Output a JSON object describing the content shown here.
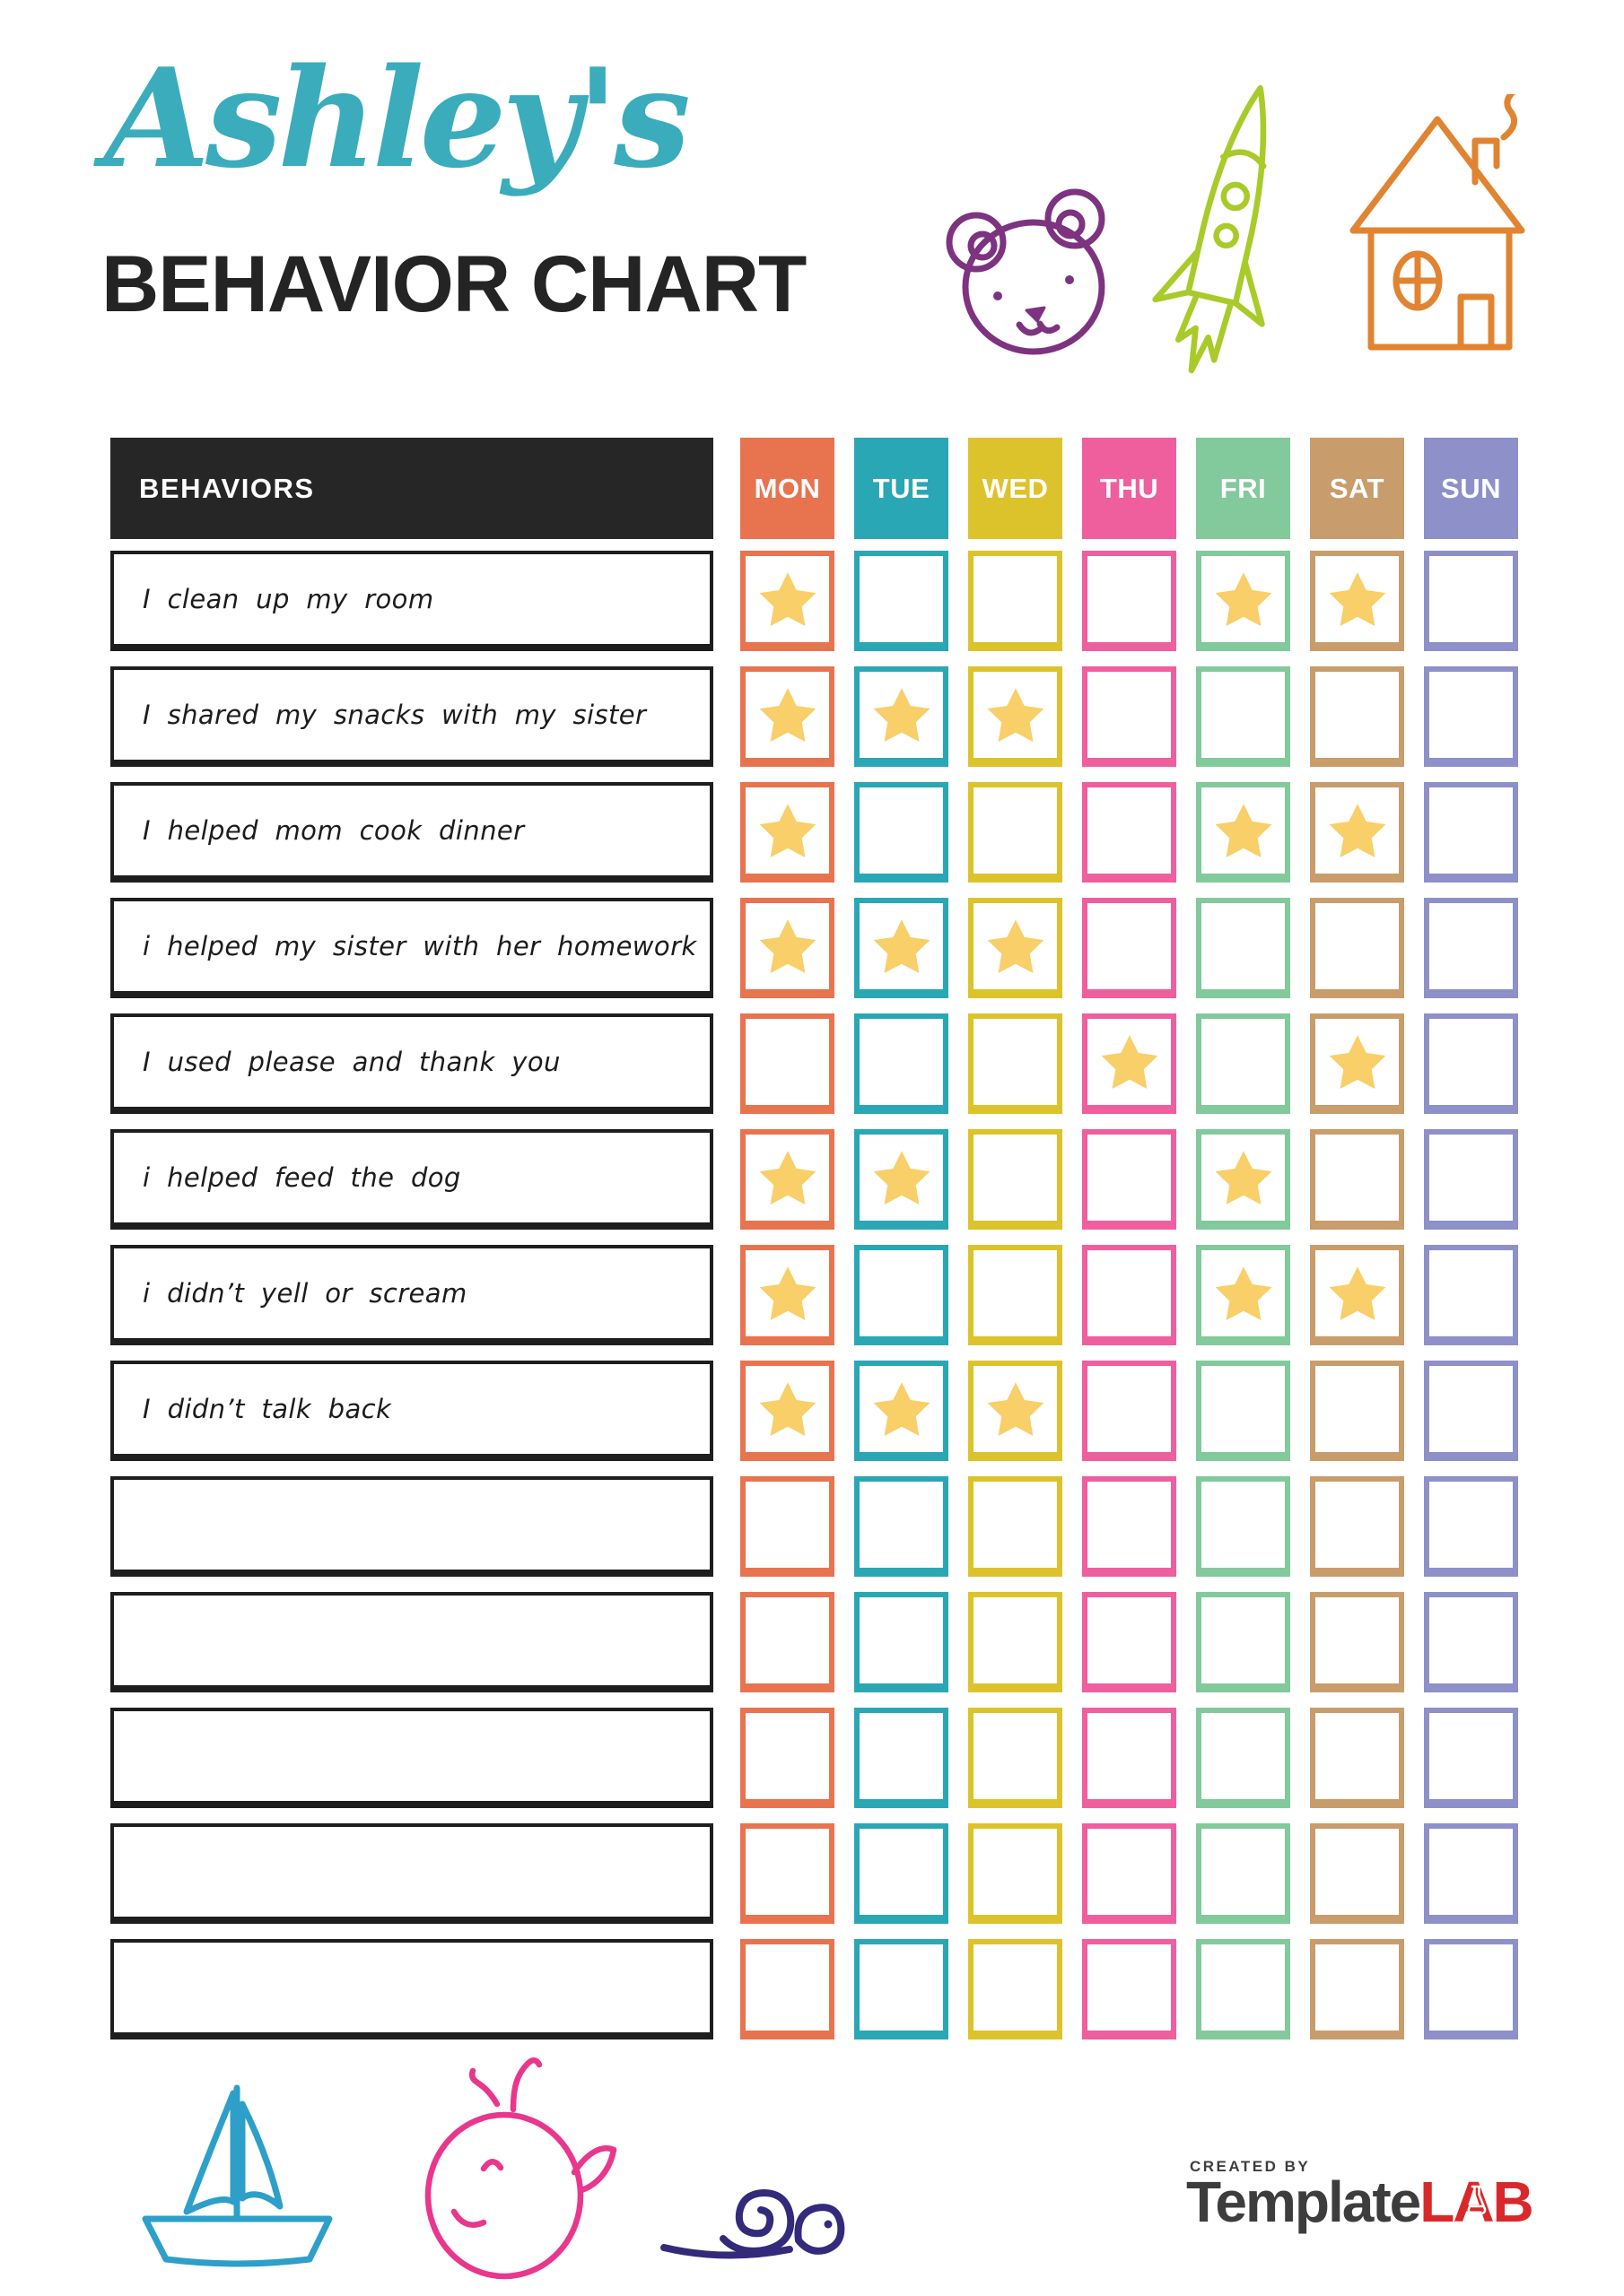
{
  "header": {
    "script_title": "Ashley's",
    "main_title": "BEHAVIOR CHART"
  },
  "doodles_top": [
    {
      "name": "bear",
      "color": "#7d3380"
    },
    {
      "name": "rocket",
      "color": "#a8cb2a"
    },
    {
      "name": "house",
      "color": "#e08432"
    }
  ],
  "table": {
    "behaviors_header": "BEHAVIORS",
    "header_bg": "#262626",
    "star_color": "#f8cf68",
    "days": [
      {
        "label": "MON",
        "color": "#e8734f"
      },
      {
        "label": "TUE",
        "color": "#2aa7b4"
      },
      {
        "label": "WED",
        "color": "#ddc32b"
      },
      {
        "label": "THU",
        "color": "#ef5f9e"
      },
      {
        "label": "FRI",
        "color": "#82c99c"
      },
      {
        "label": "SAT",
        "color": "#c89d6b"
      },
      {
        "label": "SUN",
        "color": "#8e90c9"
      }
    ],
    "rows": [
      {
        "label": "I clean up my room",
        "stars": [
          "MON",
          "FRI",
          "SAT"
        ]
      },
      {
        "label": "I shared my snacks with my sister",
        "stars": [
          "MON",
          "TUE",
          "WED"
        ]
      },
      {
        "label": "I helped mom cook dinner",
        "stars": [
          "MON",
          "FRI",
          "SAT"
        ]
      },
      {
        "label": "i helped my sister with her homework",
        "stars": [
          "MON",
          "TUE",
          "WED"
        ]
      },
      {
        "label": "I used please and thank you",
        "stars": [
          "THU",
          "SAT"
        ]
      },
      {
        "label": "i helped feed the dog",
        "stars": [
          "MON",
          "TUE",
          "FRI"
        ]
      },
      {
        "label": "i didn’t yell or scream",
        "stars": [
          "MON",
          "FRI",
          "SAT"
        ]
      },
      {
        "label": "I didn’t talk back",
        "stars": [
          "MON",
          "TUE",
          "WED"
        ]
      },
      {
        "label": "",
        "stars": []
      },
      {
        "label": "",
        "stars": []
      },
      {
        "label": "",
        "stars": []
      },
      {
        "label": "",
        "stars": []
      },
      {
        "label": "",
        "stars": []
      }
    ]
  },
  "doodles_bottom": [
    {
      "name": "sailboat",
      "color": "#2d9fc9"
    },
    {
      "name": "whale",
      "color": "#e8378d"
    },
    {
      "name": "snail",
      "color": "#332a7c"
    }
  ],
  "footer": {
    "created_by": "CREATED BY",
    "brand_gray": "Template",
    "brand_red": "LAB"
  }
}
